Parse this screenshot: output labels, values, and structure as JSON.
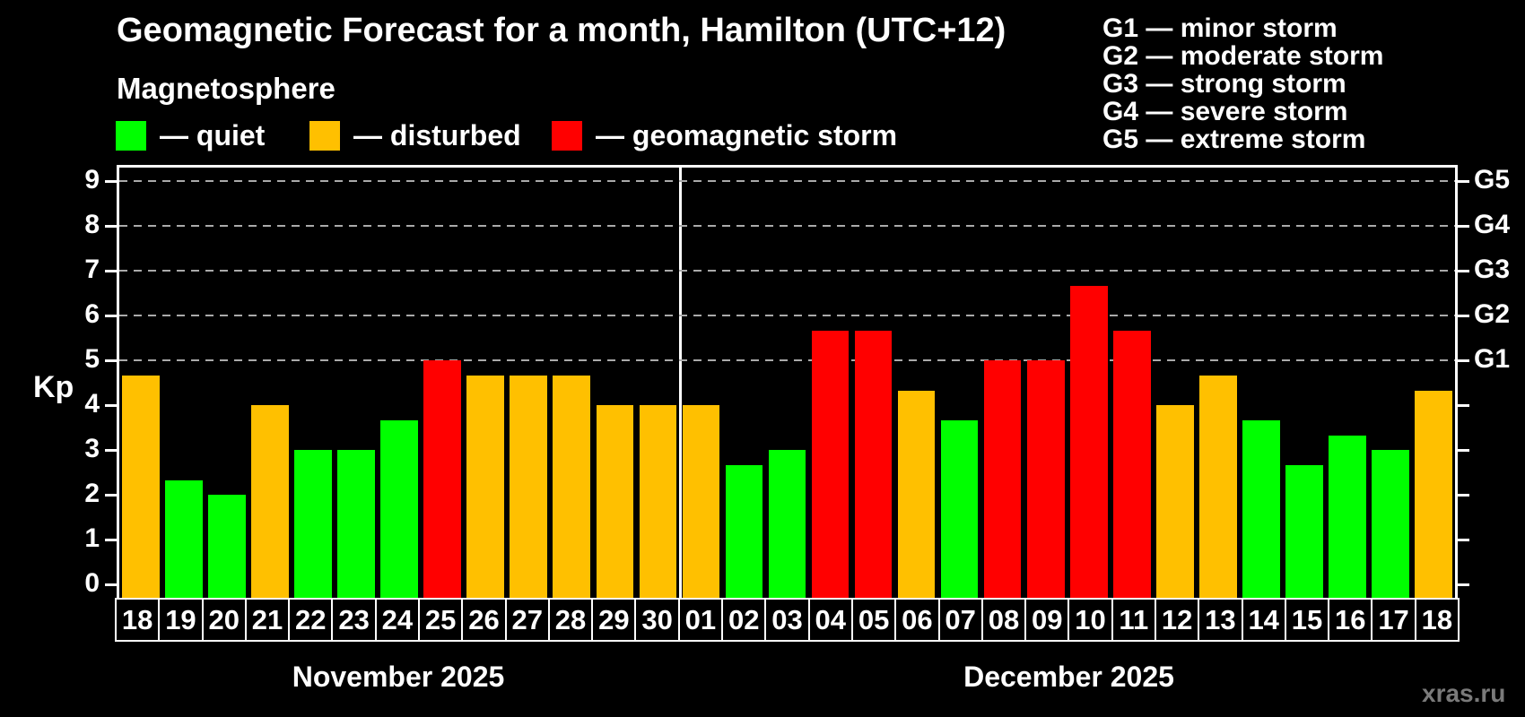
{
  "title": "Geomagnetic Forecast for a month, Hamilton (UTC+12)",
  "subtitle": "Magnetosphere",
  "legend": {
    "items": [
      {
        "key": "quiet",
        "label": "— quiet"
      },
      {
        "key": "disturbed",
        "label": "— disturbed"
      },
      {
        "key": "storm",
        "label": "— geomagnetic storm"
      }
    ]
  },
  "storm_scale_legend": {
    "lines": [
      "G1 — minor storm",
      "G2 — moderate storm",
      "G3 — strong storm",
      "G4 — severe storm",
      "G5 — extreme storm"
    ]
  },
  "watermark": "xras.ru",
  "colors": {
    "quiet": "#00ff00",
    "disturbed": "#ffc000",
    "storm": "#ff0000",
    "background": "#000000",
    "axis": "#ffffff",
    "gridline": "#aaaaaa"
  },
  "chart_data": {
    "type": "bar",
    "title": "Geomagnetic Forecast for a month, Hamilton (UTC+12)",
    "ylabel": "Kp",
    "ylim": [
      0,
      9
    ],
    "yticks": [
      0,
      1,
      2,
      3,
      4,
      5,
      6,
      7,
      8,
      9
    ],
    "gridlines_kp": [
      5,
      6,
      7,
      8,
      9
    ],
    "grid": "dashed horizontal at G-storm levels only",
    "right_axis": [
      {
        "label": "G5",
        "kp": 9
      },
      {
        "label": "G4",
        "kp": 8
      },
      {
        "label": "G3",
        "kp": 7
      },
      {
        "label": "G2",
        "kp": 6
      },
      {
        "label": "G1",
        "kp": 5
      }
    ],
    "months": [
      {
        "label": "November 2025",
        "days": [
          {
            "day": "18",
            "kp": 4.67,
            "status": "disturbed"
          },
          {
            "day": "19",
            "kp": 2.33,
            "status": "quiet"
          },
          {
            "day": "20",
            "kp": 2.0,
            "status": "quiet"
          },
          {
            "day": "21",
            "kp": 4.0,
            "status": "disturbed"
          },
          {
            "day": "22",
            "kp": 3.0,
            "status": "quiet"
          },
          {
            "day": "23",
            "kp": 3.0,
            "status": "quiet"
          },
          {
            "day": "24",
            "kp": 3.67,
            "status": "quiet"
          },
          {
            "day": "25",
            "kp": 5.0,
            "status": "storm"
          },
          {
            "day": "26",
            "kp": 4.67,
            "status": "disturbed"
          },
          {
            "day": "27",
            "kp": 4.67,
            "status": "disturbed"
          },
          {
            "day": "28",
            "kp": 4.67,
            "status": "disturbed"
          },
          {
            "day": "29",
            "kp": 4.0,
            "status": "disturbed"
          },
          {
            "day": "30",
            "kp": 4.0,
            "status": "disturbed"
          }
        ]
      },
      {
        "label": "December 2025",
        "days": [
          {
            "day": "01",
            "kp": 4.0,
            "status": "disturbed"
          },
          {
            "day": "02",
            "kp": 2.67,
            "status": "quiet"
          },
          {
            "day": "03",
            "kp": 3.0,
            "status": "quiet"
          },
          {
            "day": "04",
            "kp": 5.67,
            "status": "storm"
          },
          {
            "day": "05",
            "kp": 5.67,
            "status": "storm"
          },
          {
            "day": "06",
            "kp": 4.33,
            "status": "disturbed"
          },
          {
            "day": "07",
            "kp": 3.67,
            "status": "quiet"
          },
          {
            "day": "08",
            "kp": 5.0,
            "status": "storm"
          },
          {
            "day": "09",
            "kp": 5.0,
            "status": "storm"
          },
          {
            "day": "10",
            "kp": 6.67,
            "status": "storm"
          },
          {
            "day": "11",
            "kp": 5.67,
            "status": "storm"
          },
          {
            "day": "12",
            "kp": 4.0,
            "status": "disturbed"
          },
          {
            "day": "13",
            "kp": 4.67,
            "status": "disturbed"
          },
          {
            "day": "14",
            "kp": 3.67,
            "status": "quiet"
          },
          {
            "day": "15",
            "kp": 2.67,
            "status": "quiet"
          },
          {
            "day": "16",
            "kp": 3.33,
            "status": "quiet"
          },
          {
            "day": "17",
            "kp": 3.0,
            "status": "quiet"
          },
          {
            "day": "18",
            "kp": 4.33,
            "status": "disturbed"
          }
        ]
      }
    ]
  }
}
